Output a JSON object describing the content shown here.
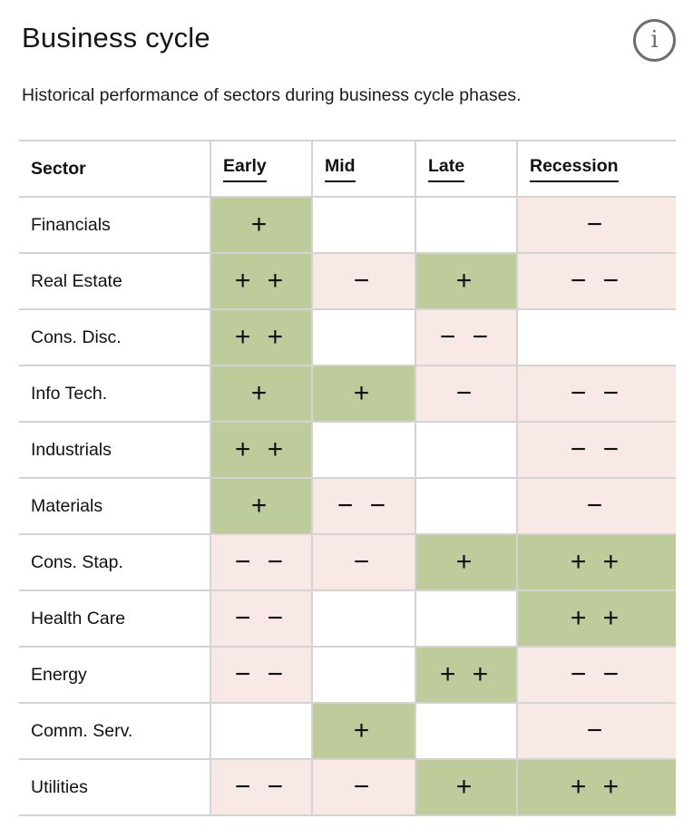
{
  "header": {
    "title": "Business cycle",
    "info_glyph": "i"
  },
  "subtitle": "Historical performance of sectors during business cycle phases.",
  "colors": {
    "positive_bg": "#becb9b",
    "negative_bg": "#f8e9e6",
    "grid": "#d5d3d1",
    "text": "#111111",
    "icon": "#6e6e6e"
  },
  "table": {
    "columns": [
      {
        "key": "sector",
        "label": "Sector",
        "underlined": false
      },
      {
        "key": "early",
        "label": "Early",
        "underlined": true
      },
      {
        "key": "mid",
        "label": "Mid",
        "underlined": true
      },
      {
        "key": "late",
        "label": "Late",
        "underlined": true
      },
      {
        "key": "recession",
        "label": "Recession",
        "underlined": true
      }
    ],
    "rows": [
      {
        "sector": "Financials",
        "early": "+",
        "mid": "",
        "late": "",
        "recession": "−"
      },
      {
        "sector": "Real Estate",
        "early": "+ +",
        "mid": "−",
        "late": "+",
        "recession": "− −"
      },
      {
        "sector": "Cons. Disc.",
        "early": "+ +",
        "mid": "",
        "late": "− −",
        "recession": ""
      },
      {
        "sector": "Info Tech.",
        "early": "+",
        "mid": "+",
        "late": "−",
        "recession": "− −"
      },
      {
        "sector": "Industrials",
        "early": "+ +",
        "mid": "",
        "late": "",
        "recession": "− −"
      },
      {
        "sector": "Materials",
        "early": "+",
        "mid": "− −",
        "late": "",
        "recession": "−"
      },
      {
        "sector": "Cons. Stap.",
        "early": "− −",
        "mid": "−",
        "late": "+",
        "recession": "+ +"
      },
      {
        "sector": "Health Care",
        "early": "− −",
        "mid": "",
        "late": "",
        "recession": "+ +"
      },
      {
        "sector": "Energy",
        "early": "− −",
        "mid": "",
        "late": "+ +",
        "recession": "− −"
      },
      {
        "sector": "Comm. Serv.",
        "early": "",
        "mid": "+",
        "late": "",
        "recession": "−"
      },
      {
        "sector": "Utilities",
        "early": "− −",
        "mid": "−",
        "late": "+",
        "recession": "+ +"
      }
    ]
  },
  "chart_data": {
    "type": "heatmap",
    "title": "Business cycle",
    "subtitle": "Historical performance of sectors during business cycle phases.",
    "columns": [
      "Early",
      "Mid",
      "Late",
      "Recession"
    ],
    "rows": [
      "Financials",
      "Real Estate",
      "Cons. Disc.",
      "Info Tech.",
      "Industrials",
      "Materials",
      "Cons. Stap.",
      "Health Care",
      "Energy",
      "Comm. Serv.",
      "Utilities"
    ],
    "value_legend": {
      "2": "+ +",
      "1": "+",
      "0": "neutral/blank",
      "-1": "−",
      "-2": "− −"
    },
    "values": [
      [
        1,
        0,
        0,
        -1
      ],
      [
        2,
        -1,
        1,
        -2
      ],
      [
        2,
        0,
        -2,
        0
      ],
      [
        1,
        1,
        -1,
        -2
      ],
      [
        2,
        0,
        0,
        -2
      ],
      [
        1,
        -2,
        0,
        -1
      ],
      [
        -2,
        -1,
        1,
        2
      ],
      [
        -2,
        0,
        0,
        2
      ],
      [
        -2,
        0,
        2,
        -2
      ],
      [
        0,
        1,
        0,
        -1
      ],
      [
        -2,
        -1,
        1,
        2
      ]
    ]
  }
}
